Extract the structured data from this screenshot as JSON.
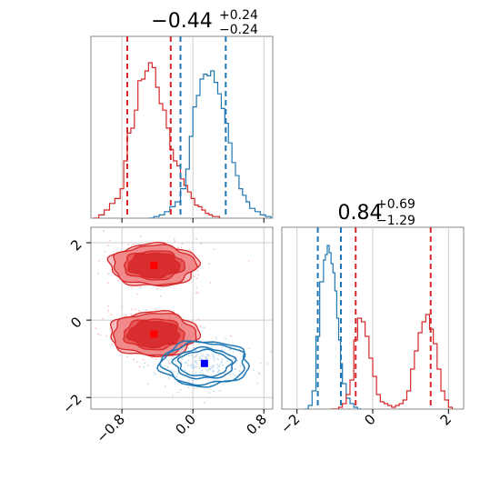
{
  "colors": {
    "red": "#d62728",
    "blue": "#1f77b4",
    "red_fill": "#f08080",
    "grid": "#cccccc",
    "frame": "#888888"
  },
  "chart_data": [
    {
      "type": "histogram",
      "panel": "top-left",
      "title": {
        "value": "−0.44",
        "plus": "+0.24",
        "minus": "−0.24"
      },
      "xlim": [
        -1.15,
        0.9
      ],
      "series": [
        {
          "color": "red",
          "x": [
            -1.12,
            -1.06,
            -1.0,
            -0.94,
            -0.88,
            -0.82,
            -0.78,
            -0.74,
            -0.7,
            -0.66,
            -0.62,
            -0.58,
            -0.54,
            -0.5,
            -0.46,
            -0.42,
            -0.38,
            -0.34,
            -0.3,
            -0.26,
            -0.22,
            -0.18,
            -0.14,
            -0.1,
            -0.06,
            -0.02,
            0.02,
            0.06,
            0.1,
            0.14,
            0.18,
            0.22,
            0.26,
            0.3
          ],
          "y": [
            0.0,
            0.02,
            0.05,
            0.09,
            0.12,
            0.18,
            0.35,
            0.52,
            0.55,
            0.66,
            0.84,
            0.85,
            0.9,
            0.95,
            0.92,
            0.8,
            0.7,
            0.66,
            0.55,
            0.42,
            0.35,
            0.32,
            0.24,
            0.2,
            0.16,
            0.12,
            0.08,
            0.07,
            0.05,
            0.03,
            0.02,
            0.01,
            0.01,
            0.0
          ]
        },
        {
          "color": "blue",
          "x": [
            -0.5,
            -0.44,
            -0.38,
            -0.32,
            -0.26,
            -0.2,
            -0.14,
            -0.08,
            -0.04,
            0.0,
            0.04,
            0.08,
            0.12,
            0.16,
            0.2,
            0.24,
            0.28,
            0.32,
            0.36,
            0.4,
            0.44,
            0.48,
            0.52,
            0.56,
            0.6,
            0.64,
            0.7,
            0.76,
            0.82,
            0.88
          ],
          "y": [
            0.0,
            0.01,
            0.02,
            0.04,
            0.07,
            0.1,
            0.18,
            0.3,
            0.5,
            0.68,
            0.75,
            0.85,
            0.88,
            0.87,
            0.9,
            0.83,
            0.76,
            0.67,
            0.58,
            0.46,
            0.34,
            0.26,
            0.18,
            0.14,
            0.1,
            0.06,
            0.04,
            0.02,
            0.01,
            0.0
          ]
        }
      ],
      "vlines": [
        {
          "color": "red",
          "x": -0.74
        },
        {
          "color": "red",
          "x": -0.25
        },
        {
          "color": "blue",
          "x": -0.14
        },
        {
          "color": "blue",
          "x": 0.37
        }
      ]
    },
    {
      "type": "contour",
      "panel": "bottom-left",
      "xlim": [
        -1.15,
        0.9
      ],
      "ylim": [
        -2.3,
        2.4
      ],
      "xticks": [
        "−0.8",
        "0.0",
        "0.8"
      ],
      "yticks": [
        "−2",
        "0",
        "2"
      ],
      "blobs": [
        {
          "color": "red",
          "cx": -0.44,
          "cy": 1.42,
          "rx": 0.5,
          "ry": 0.55,
          "filled": true
        },
        {
          "color": "red",
          "cx": -0.44,
          "cy": -0.36,
          "rx": 0.5,
          "ry": 0.58,
          "filled": true
        },
        {
          "color": "blue",
          "cx": 0.13,
          "cy": -1.12,
          "rx": 0.5,
          "ry": 0.58,
          "filled": false
        }
      ],
      "markers": [
        {
          "color": "red",
          "x": -0.44,
          "y": 1.42
        },
        {
          "color": "red",
          "x": -0.44,
          "y": -0.36
        },
        {
          "color": "blue",
          "x": 0.13,
          "y": -1.12
        }
      ]
    },
    {
      "type": "histogram",
      "panel": "bottom-right",
      "title": {
        "value": "0.84",
        "plus": "+0.69",
        "minus": "−1.29"
      },
      "xlim": [
        -2.4,
        2.4
      ],
      "xticks": [
        "−2",
        "0",
        "2"
      ],
      "series": [
        {
          "color": "blue",
          "x": [
            -1.8,
            -1.7,
            -1.6,
            -1.5,
            -1.4,
            -1.3,
            -1.25,
            -1.2,
            -1.15,
            -1.1,
            -1.05,
            -1.0,
            -0.95,
            -0.9,
            -0.85,
            -0.8,
            -0.7,
            -0.6,
            -0.5,
            -0.4,
            -0.3
          ],
          "y": [
            0.0,
            0.02,
            0.1,
            0.4,
            0.7,
            0.82,
            0.85,
            0.9,
            0.86,
            0.8,
            0.75,
            0.65,
            0.5,
            0.38,
            0.25,
            0.14,
            0.06,
            0.03,
            0.01,
            0.0,
            0.0
          ]
        },
        {
          "color": "red",
          "x": [
            -1.1,
            -0.9,
            -0.8,
            -0.7,
            -0.6,
            -0.5,
            -0.4,
            -0.3,
            -0.2,
            -0.1,
            0.0,
            0.1,
            0.2,
            0.3,
            0.4,
            0.5,
            0.6,
            0.7,
            0.8,
            0.9,
            1.0,
            1.1,
            1.2,
            1.3,
            1.4,
            1.5,
            1.6,
            1.7,
            1.8,
            1.9,
            2.0,
            2.1
          ],
          "y": [
            0.0,
            0.01,
            0.03,
            0.08,
            0.16,
            0.38,
            0.5,
            0.48,
            0.4,
            0.28,
            0.18,
            0.08,
            0.04,
            0.03,
            0.02,
            0.01,
            0.02,
            0.03,
            0.05,
            0.1,
            0.22,
            0.32,
            0.42,
            0.48,
            0.52,
            0.44,
            0.36,
            0.22,
            0.1,
            0.05,
            0.01,
            0.0
          ]
        }
      ],
      "vlines": [
        {
          "color": "blue",
          "x": -1.45
        },
        {
          "color": "blue",
          "x": -0.84
        },
        {
          "color": "red",
          "x": -0.45
        },
        {
          "color": "red",
          "x": 1.53
        }
      ]
    }
  ]
}
